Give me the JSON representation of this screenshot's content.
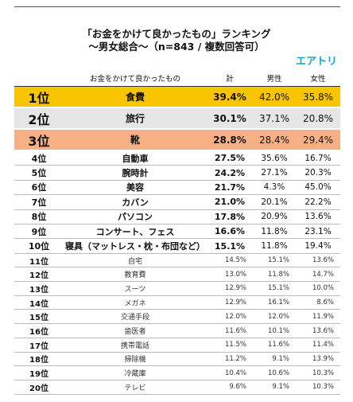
{
  "header": {
    "title_line1": "「お金をかけて良かったもの」ランキング",
    "title_line2": "～男女総合～（n=843 / 複数回答可）",
    "brand": "エアトリ"
  },
  "table": {
    "columns": [
      "",
      "お金をかけて良かったもの",
      "計",
      "男性",
      "女性"
    ],
    "rows": [
      [
        "1位",
        "食費",
        "39.4%",
        "42.0%",
        "35.8%"
      ],
      [
        "2位",
        "旅行",
        "30.1%",
        "37.1%",
        "20.8%"
      ],
      [
        "3位",
        "靴",
        "28.8%",
        "28.4%",
        "29.4%"
      ],
      [
        "4位",
        "自動車",
        "27.5%",
        "35.6%",
        "16.7%"
      ],
      [
        "5位",
        "腕時計",
        "24.2%",
        "27.1%",
        "20.3%"
      ],
      [
        "6位",
        "美容",
        "21.7%",
        "4.3%",
        "45.0%"
      ],
      [
        "7位",
        "カバン",
        "21.0%",
        "20.1%",
        "22.2%"
      ],
      [
        "8位",
        "パソコン",
        "17.8%",
        "20.9%",
        "13.6%"
      ],
      [
        "9位",
        "コンサート、フェス",
        "16.6%",
        "11.8%",
        "23.1%"
      ],
      [
        "10位",
        "寝具（マットレス・枕・布団など）",
        "15.1%",
        "11.8%",
        "19.4%"
      ],
      [
        "11位",
        "自宅",
        "14.5%",
        "15.1%",
        "13.6%"
      ],
      [
        "12位",
        "教育費",
        "13.0%",
        "11.8%",
        "14.7%"
      ],
      [
        "13位",
        "スーツ",
        "12.9%",
        "15.1%",
        "10.0%"
      ],
      [
        "14位",
        "メガネ",
        "12.9%",
        "16.1%",
        "8.6%"
      ],
      [
        "15位",
        "交通手段",
        "12.0%",
        "12.0%",
        "11.9%"
      ],
      [
        "16位",
        "歯医者",
        "11.6%",
        "10.1%",
        "13.6%"
      ],
      [
        "17位",
        "携帯電話",
        "11.5%",
        "11.6%",
        "11.4%"
      ],
      [
        "18位",
        "掃除機",
        "11.2%",
        "9.1%",
        "13.9%"
      ],
      [
        "19位",
        "冷蔵庫",
        "10.4%",
        "10.6%",
        "10.3%"
      ],
      [
        "20位",
        "テレビ",
        "9.6%",
        "9.1%",
        "10.3%"
      ]
    ]
  }
}
